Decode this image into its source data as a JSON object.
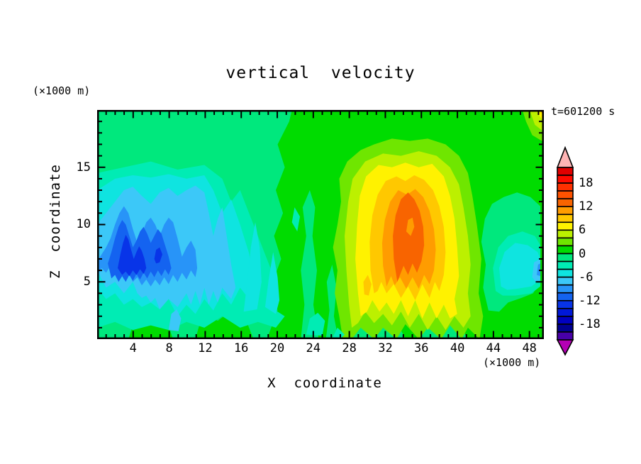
{
  "chart_data": {
    "type": "filled_contour",
    "title": "vertical  velocity",
    "annotations": {
      "time": "t=601200 s"
    },
    "axes": {
      "x": {
        "label": "X  coordinate",
        "unit": "(×1000 m)",
        "min": 0,
        "max": 49.6,
        "major_every": 4,
        "minor_every": 1,
        "tick_values": [
          4,
          8,
          12,
          16,
          20,
          24,
          28,
          32,
          36,
          40,
          44,
          48
        ],
        "tick_labels": [
          "4",
          "8",
          "12",
          "16",
          "20",
          "24",
          "28",
          "32",
          "36",
          "40",
          "44",
          "48"
        ]
      },
      "z": {
        "label": "Z  coordinate",
        "unit": "(×1000 m)",
        "min": 0,
        "max": 20,
        "major_every": 5,
        "minor_every": 1,
        "tick_values": [
          5,
          10,
          15
        ],
        "tick_labels": [
          "5",
          "10",
          "15"
        ]
      }
    },
    "colorbar": {
      "band_width": 2,
      "range": [
        -22,
        22
      ],
      "labels": [
        18,
        12,
        6,
        0,
        -6,
        -12,
        -18
      ],
      "over_color": "#FFB4B4",
      "under_color": "#B400B4",
      "palette": [
        {
          "level": 20,
          "color": "#E10000"
        },
        {
          "level": 18,
          "color": "#FF0A00"
        },
        {
          "level": 16,
          "color": "#FF3000"
        },
        {
          "level": 14,
          "color": "#FF5200"
        },
        {
          "level": 12,
          "color": "#F86400"
        },
        {
          "level": 10,
          "color": "#FF9C00"
        },
        {
          "level": 8,
          "color": "#FFC800"
        },
        {
          "level": 6,
          "color": "#FFF200"
        },
        {
          "level": 4,
          "color": "#BCF000"
        },
        {
          "level": 2,
          "color": "#6FE600"
        },
        {
          "level": 0,
          "color": "#00DC00"
        },
        {
          "level": -2,
          "color": "#00E87D"
        },
        {
          "level": -4,
          "color": "#00ECB4"
        },
        {
          "level": -6,
          "color": "#0FE4E0"
        },
        {
          "level": -8,
          "color": "#3CC8F8"
        },
        {
          "level": -10,
          "color": "#2894F8"
        },
        {
          "level": -12,
          "color": "#1463F0"
        },
        {
          "level": -14,
          "color": "#0834E8"
        },
        {
          "level": -16,
          "color": "#0018D8"
        },
        {
          "level": -18,
          "color": "#0000C0"
        },
        {
          "level": -20,
          "color": "#000090"
        },
        {
          "level": -22,
          "color": "#4800A8"
        }
      ]
    },
    "grid_estimate": {
      "x_values": [
        2,
        6,
        10,
        14,
        18,
        22,
        26,
        30,
        34,
        38,
        42,
        46,
        49
      ],
      "z_values": [
        1,
        3,
        6,
        9,
        12,
        15,
        18
      ],
      "w_values": [
        [
          -2,
          -3,
          -4,
          -2,
          -1,
          0,
          -1,
          3,
          5,
          4,
          2,
          1,
          0
        ],
        [
          -7,
          -9,
          -7,
          -4,
          -2,
          0,
          2,
          6,
          10,
          7,
          3,
          0,
          -2
        ],
        [
          -11,
          -15,
          -9,
          -6,
          -3,
          -1,
          2,
          7,
          15,
          9,
          3,
          -1,
          -6
        ],
        [
          -9,
          -13,
          -11,
          -7,
          -4,
          -1,
          1,
          6,
          13,
          8,
          3,
          0,
          -3
        ],
        [
          -5,
          -6,
          -7,
          -5,
          -3,
          -1,
          1,
          5,
          9,
          6,
          2,
          0,
          -1
        ],
        [
          -2,
          -3,
          -3,
          -2,
          -1,
          0,
          1,
          4,
          7,
          5,
          1,
          1,
          0
        ],
        [
          -1,
          -1,
          -1,
          -1,
          0,
          1,
          1,
          3,
          5,
          3,
          1,
          0,
          3
        ]
      ]
    }
  }
}
